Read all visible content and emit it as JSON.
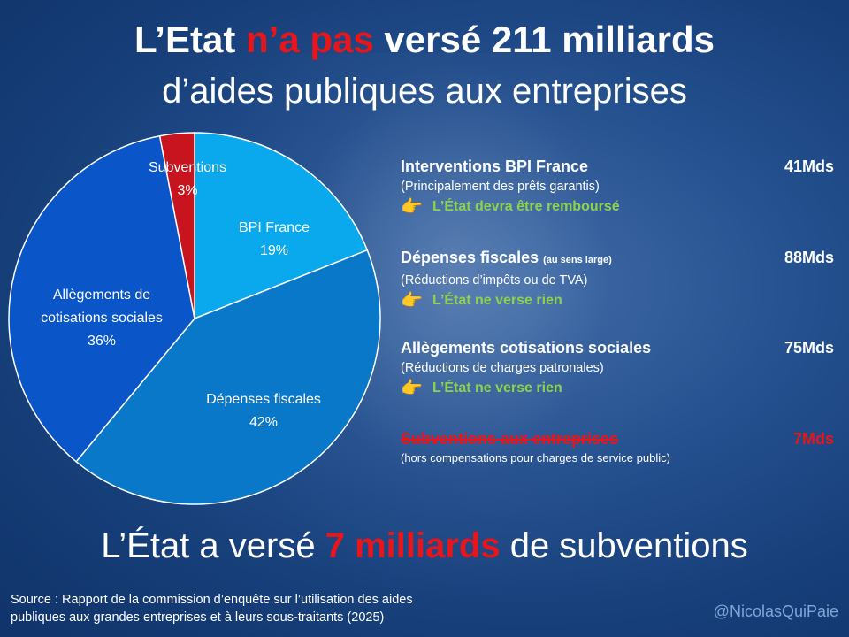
{
  "title": {
    "part1": "L’Etat ",
    "part2": "n’a pas",
    "part3": " versé 211 milliards",
    "line2": "d’aides publiques aux entreprises"
  },
  "chart_data": {
    "type": "pie",
    "slices": [
      {
        "label": "BPI France",
        "pct_label": "19%",
        "value": 19,
        "color": "#0aa8ec"
      },
      {
        "label": "Dépenses fiscales",
        "pct_label": "42%",
        "value": 42,
        "color": "#0a78c8"
      },
      {
        "label": "Allègements de cotisations sociales",
        "pct_label": "36%",
        "value": 36,
        "color": "#0a55c8"
      },
      {
        "label": "Subventions",
        "pct_label": "3%",
        "value": 3,
        "color": "#c8141e"
      }
    ]
  },
  "pie_labels": {
    "bpi": {
      "name": "BPI France",
      "pct": "19%"
    },
    "fiscales": {
      "name": "Dépenses fiscales",
      "pct": "42%"
    },
    "allegements": {
      "line1": "Allègements de",
      "line2": "cotisations sociales",
      "pct": "36%"
    },
    "subventions": {
      "name": "Subventions",
      "pct": "3%"
    }
  },
  "items": [
    {
      "title": "Interventions BPI France",
      "title_small": "",
      "amount": "41Mds",
      "subtitle": "(Principalement des prêts garantis)",
      "note": "L’État devra être remboursé"
    },
    {
      "title": "Dépenses fiscales ",
      "title_small": "(au sens large)",
      "amount": "88Mds",
      "subtitle": "(Réductions d’impôts ou de TVA)",
      "note": "L’État ne verse rien"
    },
    {
      "title": "Allègements cotisations sociales",
      "title_small": "",
      "amount": "75Mds",
      "subtitle": "(Réductions de charges patronales)",
      "note": "L’État ne verse rien"
    },
    {
      "title": "Subventions aux entreprises",
      "title_small": "",
      "amount": "7Mds",
      "subtitle": "(hors compensations pour charges de service public)",
      "note": ""
    }
  ],
  "icon": "pointing-hand-icon",
  "conclusion": {
    "part1": "L’État a versé ",
    "part2": "7 milliards",
    "part3": " de subventions"
  },
  "source": {
    "line1": "Source : Rapport de la commission d’enquête sur l’utilisation des aides",
    "line2": "publiques aux grandes entreprises et à leurs sous-traitants (2025)"
  },
  "handle": "@NicolasQuiPaie",
  "colors": {
    "red": "#e8161b",
    "green": "#8ed14f"
  }
}
